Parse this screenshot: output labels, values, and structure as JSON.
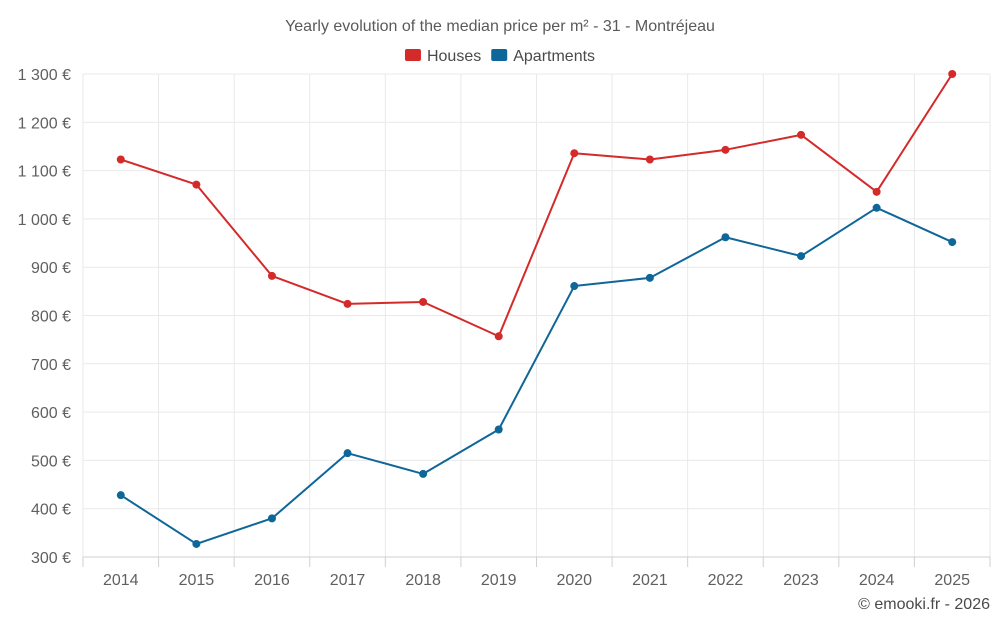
{
  "chart_data": {
    "type": "line",
    "title": "Yearly evolution of the median price per m² - 31 - Montréjeau",
    "categories": [
      "2014",
      "2015",
      "2016",
      "2017",
      "2018",
      "2019",
      "2020",
      "2021",
      "2022",
      "2023",
      "2024",
      "2025"
    ],
    "series": [
      {
        "name": "Houses",
        "color": "#d42a2a",
        "values": [
          1123,
          1071,
          882,
          824,
          828,
          757,
          1136,
          1123,
          1143,
          1174,
          1056,
          1300
        ]
      },
      {
        "name": "Apartments",
        "color": "#0f6698",
        "values": [
          428,
          327,
          380,
          515,
          472,
          564,
          861,
          878,
          962,
          923,
          1023,
          952
        ]
      }
    ],
    "ylim": [
      300,
      1300
    ],
    "yticks": [
      300,
      400,
      500,
      600,
      700,
      800,
      900,
      1000,
      1100,
      1200,
      1300
    ],
    "ytick_labels": [
      "300 €",
      "400 €",
      "500 €",
      "600 €",
      "700 €",
      "800 €",
      "900 €",
      "1 000 €",
      "1 100 €",
      "1 200 €",
      "1 300 €"
    ],
    "legend_position": "top-center",
    "grid": true
  },
  "credit": "© emooki.fr - 2026"
}
